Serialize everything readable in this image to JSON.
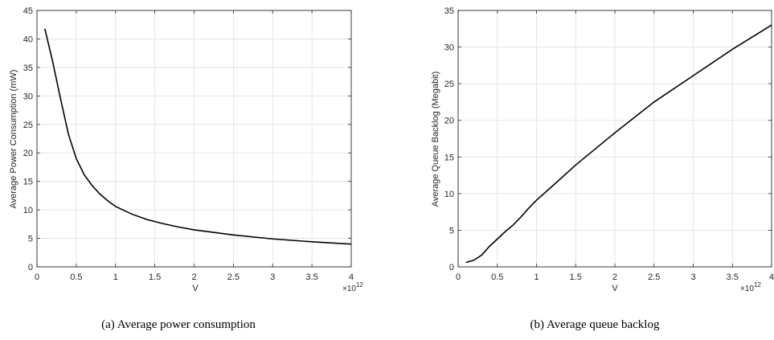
{
  "chart_data": [
    {
      "type": "line",
      "caption": "(a) Average power consumption",
      "xlabel": "V",
      "ylabel": "Average Power Consumption (mW)",
      "x_multiplier": "×10",
      "x_multiplier_exp": "12",
      "xlim": [
        0,
        4
      ],
      "ylim": [
        0,
        45
      ],
      "xticks": [
        "0",
        "0.5",
        "1",
        "1.5",
        "2",
        "2.5",
        "3",
        "3.5",
        "4"
      ],
      "yticks": [
        "0",
        "5",
        "10",
        "15",
        "20",
        "25",
        "30",
        "35",
        "40",
        "45"
      ],
      "grid": true,
      "series": [
        {
          "x": [
            0.1,
            0.2,
            0.3,
            0.4,
            0.5,
            0.6,
            0.7,
            0.8,
            0.9,
            1.0,
            1.2,
            1.4,
            1.6,
            1.8,
            2.0,
            2.5,
            3.0,
            3.5,
            4.0
          ],
          "y": [
            41.8,
            36.0,
            29.5,
            23.3,
            19.0,
            16.2,
            14.3,
            12.8,
            11.6,
            10.6,
            9.3,
            8.3,
            7.6,
            7.0,
            6.5,
            5.6,
            4.9,
            4.4,
            4.0
          ]
        }
      ]
    },
    {
      "type": "line",
      "caption": "(b) Average queue backlog",
      "xlabel": "V",
      "ylabel": "Average Queue Backlog (Megabit)",
      "x_multiplier": "×10",
      "x_multiplier_exp": "12",
      "xlim": [
        0,
        4
      ],
      "ylim": [
        0,
        35
      ],
      "xticks": [
        "0",
        "0.5",
        "1",
        "1.5",
        "2",
        "2.5",
        "3",
        "3.5",
        "4"
      ],
      "yticks": [
        "0",
        "5",
        "10",
        "15",
        "20",
        "25",
        "30",
        "35"
      ],
      "grid": true,
      "series": [
        {
          "x": [
            0.1,
            0.2,
            0.3,
            0.4,
            0.5,
            0.6,
            0.7,
            0.8,
            0.9,
            1.0,
            1.2,
            1.5,
            2.0,
            2.5,
            3.0,
            3.5,
            4.0
          ],
          "y": [
            0.6,
            0.9,
            1.6,
            2.8,
            3.8,
            4.8,
            5.7,
            6.8,
            8.0,
            9.1,
            11.0,
            13.9,
            18.3,
            22.5,
            26.1,
            29.7,
            33.0
          ]
        }
      ]
    }
  ]
}
